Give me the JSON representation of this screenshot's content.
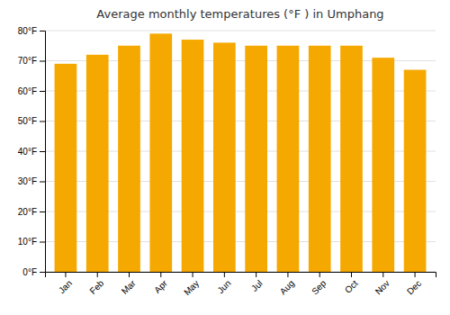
{
  "chart_data": {
    "type": "bar",
    "title": "Average monthly temperatures (°F ) in Umphang",
    "categories": [
      "Jan",
      "Feb",
      "Mar",
      "Apr",
      "May",
      "Jun",
      "Jul",
      "Aug",
      "Sep",
      "Oct",
      "Nov",
      "Dec"
    ],
    "values": [
      69,
      72,
      75,
      79,
      77,
      76,
      75,
      75,
      75,
      75,
      71,
      67
    ],
    "color": "#F5A800",
    "ylim": [
      0,
      80
    ],
    "yticks": [
      {
        "value": 0,
        "label": "0°F"
      },
      {
        "value": 10,
        "label": "10°F"
      },
      {
        "value": 20,
        "label": "20°F"
      },
      {
        "value": 30,
        "label": "30°F"
      },
      {
        "value": 40,
        "label": "40°F"
      },
      {
        "value": 50,
        "label": "50°F"
      },
      {
        "value": 60,
        "label": "60°F"
      },
      {
        "value": 70,
        "label": "70°F"
      },
      {
        "value": 80,
        "label": "80°F"
      }
    ],
    "grid": true
  }
}
